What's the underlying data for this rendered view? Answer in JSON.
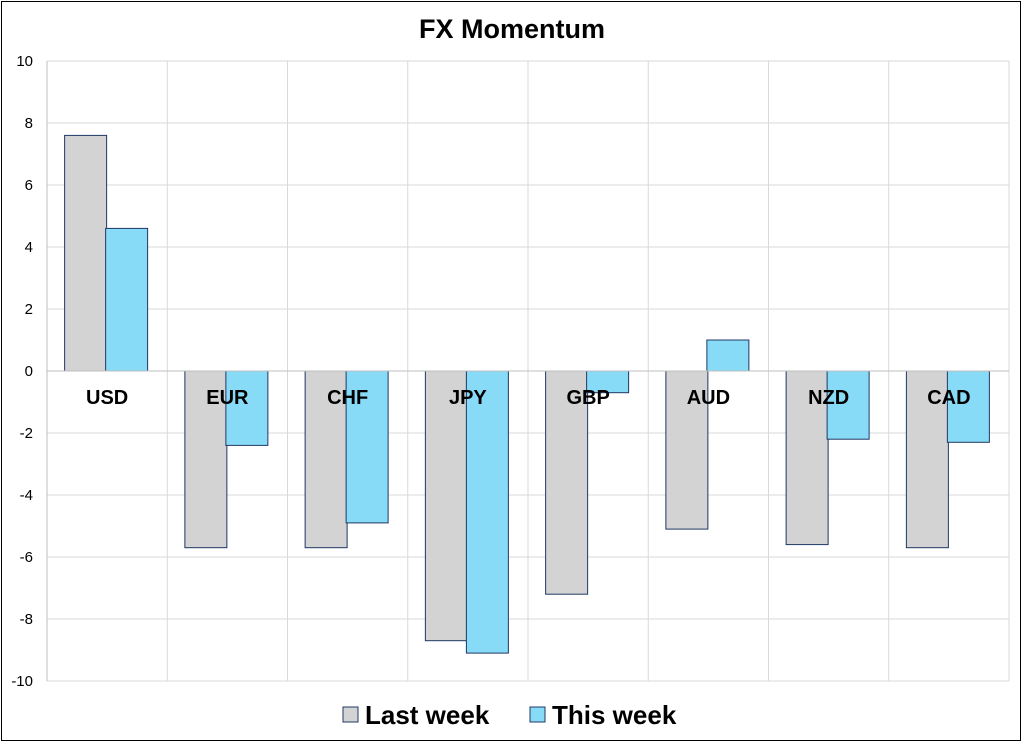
{
  "chart_data": {
    "type": "bar",
    "title": "FX Momentum",
    "xlabel": "",
    "ylabel": "",
    "categories": [
      "USD",
      "EUR",
      "CHF",
      "JPY",
      "GBP",
      "AUD",
      "NZD",
      "CAD"
    ],
    "series": [
      {
        "name": "Last week",
        "values": [
          7.6,
          -5.7,
          -5.7,
          -8.7,
          -7.2,
          -5.1,
          -5.6,
          -5.7
        ],
        "color": "#d3d3d3"
      },
      {
        "name": "This week",
        "values": [
          4.6,
          -2.4,
          -4.9,
          -9.1,
          -0.7,
          1.0,
          -2.2,
          -2.3
        ],
        "color": "#88dbf6"
      }
    ],
    "ylim": [
      -10,
      10
    ],
    "yticks": [
      10,
      8,
      6,
      4,
      2,
      0,
      -2,
      -4,
      -6,
      -8,
      -10
    ],
    "grid": true,
    "legend_position": "bottom",
    "bar_outline_color": "#1f3864"
  }
}
